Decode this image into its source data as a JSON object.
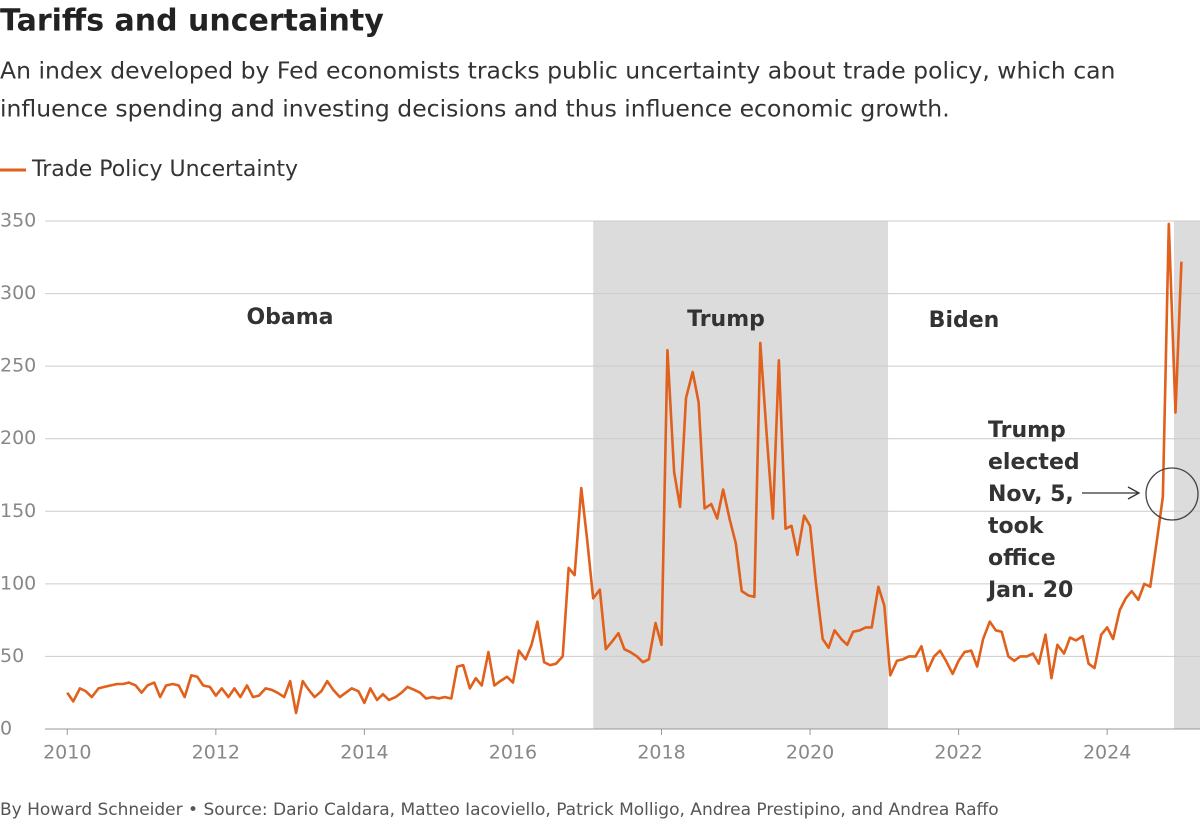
{
  "chart_data": {
    "type": "line",
    "title": "Tariffs and uncertainty",
    "subtitle": [
      "An index developed by Fed economists tracks public uncertainty about trade policy, which can",
      "influence spending and investing decisions and thus influence economic growth."
    ],
    "footer": "By Howard Schneider • Source: Dario Caldara, Matteo Iacoviello, Patrick Molligo, Andrea Prestipino, and Andrea Raffo",
    "xlim": [
      2009.7,
      2025.25
    ],
    "ylim": [
      0,
      350
    ],
    "xticks": [
      2010,
      2012,
      2014,
      2016,
      2018,
      2020,
      2022,
      2024
    ],
    "yticks": [
      0,
      50,
      100,
      150,
      200,
      250,
      300,
      350
    ],
    "grid": true,
    "shaded_periods": [
      {
        "start": 2017.08,
        "end": 2021.05
      },
      {
        "start": 2024.9,
        "end": 2025.25
      }
    ],
    "period_labels": [
      "Obama",
      "Trump",
      "Biden"
    ],
    "annotation": [
      "Trump",
      "elected",
      "Nov, 5,",
      "took",
      "office",
      "Jan. 20"
    ],
    "x": [
      2010,
      2010.08,
      2010.17,
      2010.25,
      2010.33,
      2010.42,
      2010.5,
      2010.58,
      2010.67,
      2010.75,
      2010.83,
      2010.92,
      2011,
      2011.08,
      2011.17,
      2011.25,
      2011.33,
      2011.42,
      2011.5,
      2011.58,
      2011.67,
      2011.75,
      2011.83,
      2011.92,
      2012,
      2012.08,
      2012.17,
      2012.25,
      2012.33,
      2012.42,
      2012.5,
      2012.58,
      2012.67,
      2012.75,
      2012.83,
      2012.92,
      2013,
      2013.08,
      2013.17,
      2013.25,
      2013.33,
      2013.42,
      2013.5,
      2013.58,
      2013.67,
      2013.75,
      2013.83,
      2013.92,
      2014,
      2014.08,
      2014.17,
      2014.25,
      2014.33,
      2014.42,
      2014.5,
      2014.58,
      2014.67,
      2014.75,
      2014.83,
      2014.92,
      2015,
      2015.08,
      2015.17,
      2015.25,
      2015.33,
      2015.42,
      2015.5,
      2015.58,
      2015.67,
      2015.75,
      2015.83,
      2015.92,
      2016,
      2016.08,
      2016.17,
      2016.25,
      2016.33,
      2016.42,
      2016.5,
      2016.58,
      2016.67,
      2016.75,
      2016.83,
      2016.92,
      2017,
      2017.08,
      2017.17,
      2017.25,
      2017.33,
      2017.42,
      2017.5,
      2017.58,
      2017.67,
      2017.75,
      2017.83,
      2017.92,
      2018,
      2018.08,
      2018.17,
      2018.25,
      2018.33,
      2018.42,
      2018.5,
      2018.58,
      2018.67,
      2018.75,
      2018.83,
      2018.92,
      2019,
      2019.08,
      2019.17,
      2019.25,
      2019.33,
      2019.42,
      2019.5,
      2019.58,
      2019.67,
      2019.75,
      2019.83,
      2019.92,
      2020,
      2020.08,
      2020.17,
      2020.25,
      2020.33,
      2020.42,
      2020.5,
      2020.58,
      2020.67,
      2020.75,
      2020.83,
      2020.92,
      2021,
      2021.08,
      2021.17,
      2021.25,
      2021.33,
      2021.42,
      2021.5,
      2021.58,
      2021.67,
      2021.75,
      2021.83,
      2021.92,
      2022,
      2022.08,
      2022.17,
      2022.25,
      2022.33,
      2022.42,
      2022.5,
      2022.58,
      2022.67,
      2022.75,
      2022.83,
      2022.92,
      2023,
      2023.08,
      2023.17,
      2023.25,
      2023.33,
      2023.42,
      2023.5,
      2023.58,
      2023.67,
      2023.75,
      2023.83,
      2023.92,
      2024,
      2024.08,
      2024.17,
      2024.25,
      2024.33,
      2024.42,
      2024.5,
      2024.58,
      2024.67,
      2024.75,
      2024.83,
      2024.92,
      2025
    ],
    "series": [
      {
        "name": "Trade Policy Uncertainty",
        "color": "#e0601c",
        "values": [
          25,
          19,
          28,
          26,
          22,
          28,
          29,
          30,
          31,
          31,
          32,
          30,
          25,
          30,
          32,
          22,
          30,
          31,
          30,
          22,
          37,
          36,
          30,
          29,
          23,
          28,
          22,
          28,
          22,
          30,
          22,
          23,
          28,
          27,
          25,
          22,
          33,
          11,
          33,
          27,
          22,
          26,
          33,
          27,
          22,
          25,
          28,
          26,
          18,
          28,
          20,
          24,
          20,
          22,
          25,
          29,
          27,
          25,
          21,
          22,
          21,
          22,
          21,
          43,
          44,
          28,
          35,
          30,
          53,
          30,
          33,
          36,
          32,
          54,
          48,
          58,
          74,
          46,
          44,
          45,
          50,
          111,
          106,
          166,
          130,
          90,
          96,
          55,
          60,
          66,
          55,
          53,
          50,
          46,
          48,
          73,
          58,
          261,
          177,
          153,
          228,
          246,
          225,
          152,
          155,
          145,
          165,
          144,
          128,
          95,
          92,
          91,
          266,
          200,
          145,
          254,
          138,
          140,
          120,
          147,
          140,
          100,
          62,
          56,
          68,
          62,
          58,
          67,
          68,
          70,
          70,
          98,
          85,
          37,
          47,
          48,
          50,
          50,
          57,
          40,
          50,
          54,
          47,
          38,
          47,
          53,
          54,
          43,
          62,
          74,
          68,
          67,
          50,
          47,
          50,
          50,
          52,
          45,
          65,
          35,
          58,
          52,
          63,
          61,
          64,
          45,
          42,
          65,
          70,
          62,
          82,
          90,
          95,
          89,
          100,
          98,
          130,
          160,
          348,
          218,
          322
        ]
      }
    ]
  }
}
